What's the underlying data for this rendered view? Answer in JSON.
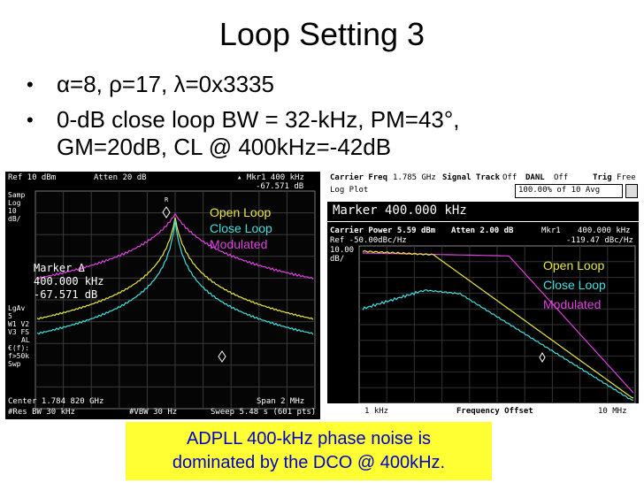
{
  "slide": {
    "title": "Loop Setting 3",
    "bullets": [
      {
        "line1": "α=8, ρ=17, λ=0x3335",
        "line2": ""
      },
      {
        "line1": "0-dB close loop BW = 32-kHz, PM=43°,",
        "line2": "GM=20dB, CL @ 400kHz=-42dB"
      }
    ],
    "bullet_glyph": "•",
    "caption": {
      "line1": "ADPLL 400-kHz phase noise is",
      "line2": "dominated by the DCO @ 400kHz."
    }
  },
  "colors": {
    "open_loop": "#e040e0",
    "close_loop": "#40e0e0",
    "modulated": "#e8e840",
    "caption_bg": "#ffff33",
    "caption_text": "#0000cc"
  },
  "left_analyzer": {
    "ref": "Ref 10 dBm",
    "atten": "Atten 20 dB",
    "mkr": "▴ Mkr1  400 kHz",
    "mkr_value": "-67.571 dB",
    "samp": "Samp",
    "log": "Log",
    "scale": "10",
    "unit": "dB/",
    "marker_label": "Marker Δ",
    "marker_freq": "400.000 kHz",
    "marker_val": "-67.571 dB",
    "lgav": "LgAv",
    "lgav_n": "5",
    "w1s2": "W1  V2",
    "s3fs": "V3  FS",
    "al": "AL",
    "ef": "€(f):",
    "f50k": "f>50k",
    "swp": "Swp",
    "center": "Center 1.784 820 GHz",
    "span": "Span 2 MHz",
    "res_bw": "#Res BW 30 kHz",
    "vbw": "#VBW 30 Hz",
    "sweep": "Sweep 5.48 s (601 pts)",
    "legend_open": "Open Loop",
    "legend_close": "Close Loop",
    "legend_mod": "Modulated",
    "marker_tag": "R"
  },
  "right_analyzer": {
    "carrier_freq_label": "Carrier Freq",
    "carrier_freq": "1.785 GHz",
    "signal_track_label": "Signal Track",
    "signal_track": "Off",
    "danl_label": "DANL",
    "danl": "Off",
    "trig_label": "Trig",
    "trig": "Free",
    "log_plot": "Log Plot",
    "avg": "100.00% of 10 Avg",
    "marker_header": "Marker 400.000 kHz",
    "carrier_power": "Carrier Power  5.59 dBm",
    "atten": "Atten  2.00 dB",
    "mkr1": "Mkr1",
    "mkr1_freq": "400.000 kHz",
    "mkr1_val": "-119.47 dBc/Hz",
    "ref": "Ref -50.00dBc/Hz",
    "scale": "10.00",
    "unit": "dB/",
    "x_start": "1 kHz",
    "x_label": "Frequency Offset",
    "x_end": "10 MHz",
    "legend_open": "Open Loop",
    "legend_close": "Close Loop",
    "legend_mod": "Modulated"
  }
}
